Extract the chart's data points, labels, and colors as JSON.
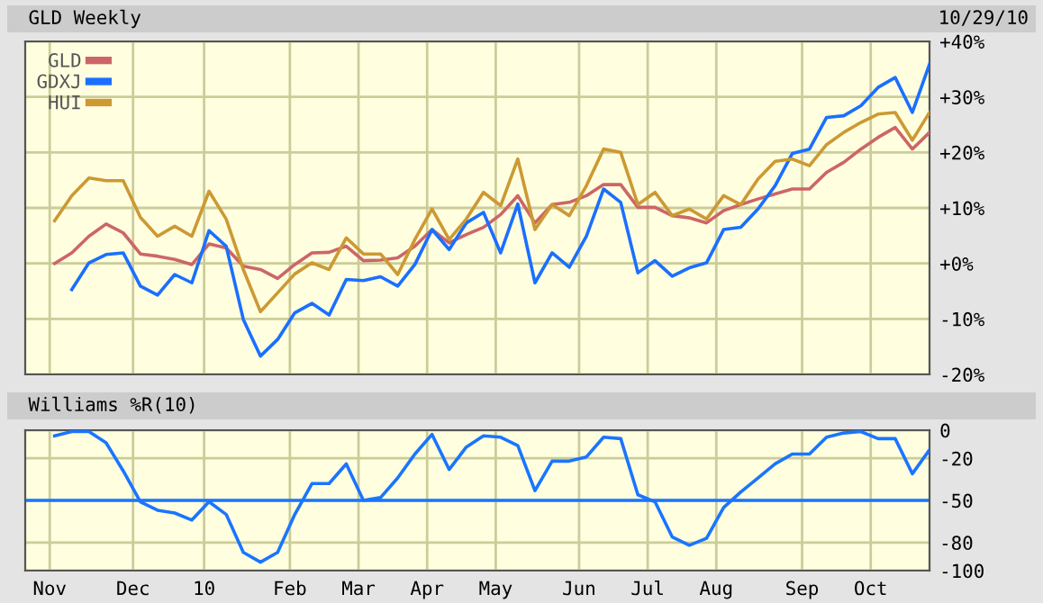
{
  "chart_data": [
    {
      "type": "line",
      "title": "GLD Weekly",
      "subtitle": "10/29/10",
      "x": [
        "2009-11-06",
        "2009-11-13",
        "2009-11-20",
        "2009-11-27",
        "2009-12-04",
        "2009-12-11",
        "2009-12-18",
        "2009-12-25",
        "2010-01-01",
        "2010-01-08",
        "2010-01-15",
        "2010-01-22",
        "2010-01-29",
        "2010-02-05",
        "2010-02-12",
        "2010-02-19",
        "2010-02-26",
        "2010-03-05",
        "2010-03-12",
        "2010-03-19",
        "2010-03-26",
        "2010-04-02",
        "2010-04-09",
        "2010-04-16",
        "2010-04-23",
        "2010-04-30",
        "2010-05-07",
        "2010-05-14",
        "2010-05-21",
        "2010-05-28",
        "2010-06-04",
        "2010-06-11",
        "2010-06-18",
        "2010-06-25",
        "2010-07-02",
        "2010-07-09",
        "2010-07-16",
        "2010-07-23",
        "2010-07-30",
        "2010-08-06",
        "2010-08-13",
        "2010-08-20",
        "2010-08-27",
        "2010-09-03",
        "2010-09-10",
        "2010-09-17",
        "2010-09-24",
        "2010-10-01",
        "2010-10-08",
        "2010-10-15",
        "2010-10-22",
        "2010-10-29"
      ],
      "series": [
        {
          "name": "GLD",
          "color": "#cc6666",
          "values": [
            0,
            1.9,
            4.9,
            7.1,
            5.5,
            1.7,
            1.3,
            0.7,
            -0.2,
            3.5,
            2.8,
            -0.5,
            -1.1,
            -2.7,
            -0.2,
            1.9,
            2.0,
            3.1,
            0.5,
            0.6,
            1,
            3.1,
            6.1,
            3.7,
            5.2,
            6.5,
            8.8,
            12.2,
            7.3,
            10.6,
            11,
            12.2,
            14.2,
            14.2,
            10.1,
            10.1,
            8.6,
            8.2,
            7.3,
            9.5,
            10.6,
            11.6,
            12.5,
            13.4,
            13.4,
            16.4,
            18.2,
            20.6,
            22.7,
            24.5,
            20.6,
            23.6
          ]
        },
        {
          "name": "GDXJ",
          "color": "#1a6fff",
          "values": [
            null,
            -4.7,
            0.1,
            1.6,
            1.9,
            -4.1,
            -5.7,
            -2,
            -3.5,
            5.9,
            3.1,
            -10.1,
            -16.7,
            -13.7,
            -8.9,
            -7.2,
            -9.3,
            -2.9,
            -3.1,
            -2.4,
            -4.1,
            -0.2,
            6.1,
            2.5,
            7.3,
            9.2,
            1.9,
            10.7,
            -3.5,
            1.9,
            -0.7,
            4.9,
            13.4,
            11,
            -1.7,
            0.5,
            -2.3,
            -0.8,
            0.1,
            6.1,
            6.5,
            9.8,
            14,
            19.8,
            20.6,
            26.3,
            26.6,
            28.4,
            31.7,
            33.5,
            27.2,
            35.9
          ]
        },
        {
          "name": "HUI",
          "color": "#cc9933",
          "values": [
            7.7,
            12.2,
            15.4,
            14.9,
            14.9,
            8.3,
            4.9,
            6.7,
            4.9,
            13,
            8,
            -1.1,
            -8.7,
            -5.3,
            -1.9,
            0.1,
            -1.1,
            4.6,
            1.7,
            1.7,
            -2,
            4.3,
            9.8,
            4.3,
            8,
            12.8,
            10.4,
            18.8,
            6.1,
            10.6,
            8.6,
            14,
            20.6,
            20,
            10.6,
            12.8,
            8.6,
            9.8,
            8,
            12.2,
            10.6,
            15.2,
            18.4,
            18.8,
            17.6,
            21.4,
            23.6,
            25.4,
            26.9,
            27.2,
            22.2,
            27.2
          ]
        }
      ],
      "xlim": [
        "2009-10-25",
        "2010-10-29"
      ],
      "xticks": [
        {
          "value": "2009-11-04",
          "label": null
        },
        {
          "value": "2009-12-08",
          "label": null
        },
        {
          "value": "2010-01-06",
          "label": null
        },
        {
          "value": "2010-02-10",
          "label": null
        },
        {
          "value": "2010-03-10",
          "label": null
        },
        {
          "value": "2010-04-07",
          "label": null
        },
        {
          "value": "2010-05-05",
          "label": null
        },
        {
          "value": "2010-06-08",
          "label": null
        },
        {
          "value": "2010-07-06",
          "label": null
        },
        {
          "value": "2010-08-03",
          "label": null
        },
        {
          "value": "2010-09-07",
          "label": null
        },
        {
          "value": "2010-10-05",
          "label": null
        }
      ],
      "ylim": [
        -20,
        40
      ],
      "yticks": [
        {
          "value": 40,
          "label": "+40%"
        },
        {
          "value": 30,
          "label": "+30%"
        },
        {
          "value": 20,
          "label": "+20%"
        },
        {
          "value": 10,
          "label": "+10%"
        },
        {
          "value": 0,
          "label": "+0%"
        },
        {
          "value": -10,
          "label": "-10%"
        },
        {
          "value": -20,
          "label": "-20%"
        }
      ],
      "tick_labels": "y",
      "grid": true,
      "legend": "top left"
    },
    {
      "type": "line",
      "title": "Williams %R(10)",
      "x": [
        "2009-11-06",
        "2009-11-13",
        "2009-11-20",
        "2009-11-27",
        "2009-12-04",
        "2009-12-11",
        "2009-12-18",
        "2009-12-25",
        "2010-01-01",
        "2010-01-08",
        "2010-01-15",
        "2010-01-22",
        "2010-01-29",
        "2010-02-05",
        "2010-02-12",
        "2010-02-19",
        "2010-02-26",
        "2010-03-05",
        "2010-03-12",
        "2010-03-19",
        "2010-03-26",
        "2010-04-02",
        "2010-04-09",
        "2010-04-16",
        "2010-04-23",
        "2010-04-30",
        "2010-05-07",
        "2010-05-14",
        "2010-05-21",
        "2010-05-28",
        "2010-06-04",
        "2010-06-11",
        "2010-06-18",
        "2010-06-25",
        "2010-07-02",
        "2010-07-09",
        "2010-07-16",
        "2010-07-23",
        "2010-07-30",
        "2010-08-06",
        "2010-08-13",
        "2010-08-20",
        "2010-08-27",
        "2010-09-03",
        "2010-09-10",
        "2010-09-17",
        "2010-09-24",
        "2010-10-01",
        "2010-10-08",
        "2010-10-15",
        "2010-10-22",
        "2010-10-29"
      ],
      "series": [
        {
          "color": "#1a75ff",
          "values": [
            -4,
            -1,
            -1,
            -9,
            -29,
            -51,
            -57,
            -59,
            -64,
            -51,
            -60,
            -87,
            -94,
            -87,
            -60,
            -38,
            -38,
            -24,
            -50,
            -48,
            -34,
            -17,
            -3,
            -28,
            -12,
            -4,
            -5,
            -11,
            -43,
            -22,
            -22,
            -19,
            -5,
            -6,
            -46,
            -51,
            -76,
            -82,
            -77,
            -55,
            -44,
            -34,
            -24,
            -17,
            -17,
            -5,
            -2,
            -1,
            -6,
            -6,
            -31,
            -14
          ]
        }
      ],
      "xlim": [
        "2009-10-25",
        "2010-10-29"
      ],
      "xticks": [
        {
          "value": "2009-11-04",
          "label": "Nov"
        },
        {
          "value": "2009-12-08",
          "label": "Dec"
        },
        {
          "value": "2010-01-06",
          "label": "10"
        },
        {
          "value": "2010-02-10",
          "label": "Feb"
        },
        {
          "value": "2010-03-10",
          "label": "Mar"
        },
        {
          "value": "2010-04-07",
          "label": "Apr"
        },
        {
          "value": "2010-05-05",
          "label": "May"
        },
        {
          "value": "2010-06-08",
          "label": "Jun"
        },
        {
          "value": "2010-07-06",
          "label": "Jul"
        },
        {
          "value": "2010-08-03",
          "label": "Aug"
        },
        {
          "value": "2010-09-07",
          "label": "Sep"
        },
        {
          "value": "2010-10-05",
          "label": "Oct"
        }
      ],
      "ylim": [
        -100,
        0
      ],
      "yticks": [
        0,
        -20,
        -50,
        -80,
        -100
      ],
      "ref_lines": [
        {
          "axis": "y",
          "value": -50,
          "color": "#1a75ff"
        }
      ],
      "grid": true
    }
  ]
}
